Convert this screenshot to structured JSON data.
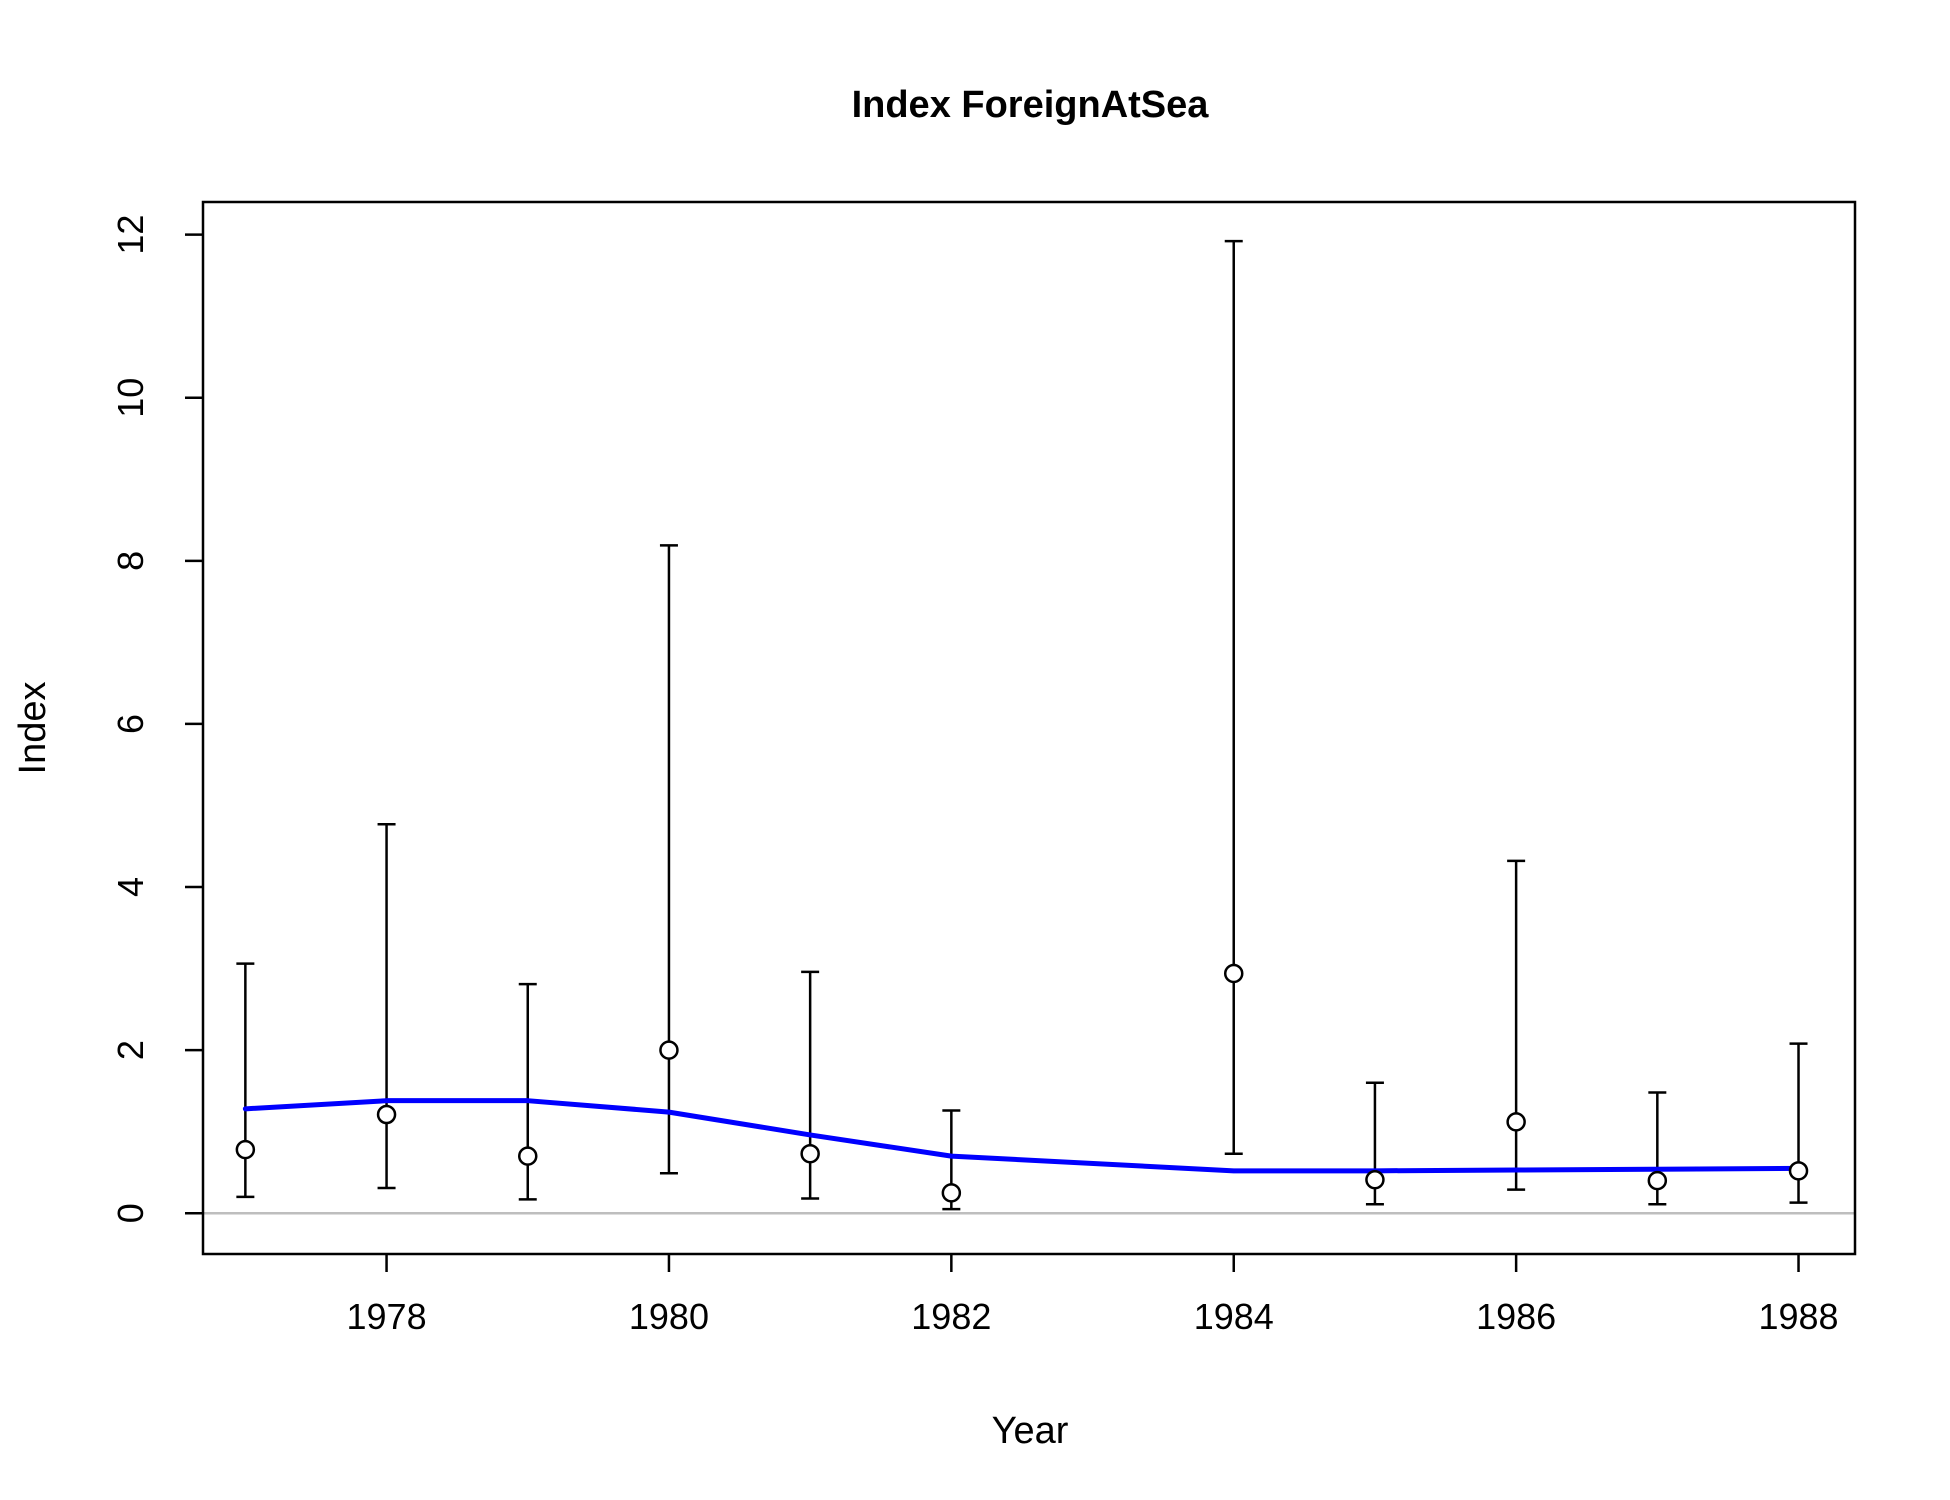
{
  "chart_data": {
    "type": "scatter",
    "title": "Index ForeignAtSea",
    "xlabel": "Year",
    "ylabel": "Index",
    "xlim": [
      1976.7,
      1988.4
    ],
    "ylim": [
      -0.5,
      12.4
    ],
    "x_ticks": [
      1978,
      1980,
      1982,
      1984,
      1986,
      1988
    ],
    "y_ticks": [
      0,
      2,
      4,
      6,
      8,
      10,
      12
    ],
    "x_tick_labels": [
      "1978",
      "1980",
      "1982",
      "1984",
      "1986",
      "1988"
    ],
    "y_tick_labels": [
      "0",
      "2",
      "4",
      "6",
      "8",
      "10",
      "12"
    ],
    "grid": false,
    "reference_line": {
      "y": 0,
      "color": "#bebebe"
    },
    "observed": {
      "x": [
        1977,
        1978,
        1979,
        1980,
        1981,
        1982,
        1984,
        1985,
        1986,
        1987,
        1988
      ],
      "y": [
        0.78,
        1.21,
        0.7,
        2.0,
        0.73,
        0.25,
        2.94,
        0.41,
        1.12,
        0.4,
        0.52
      ],
      "lower": [
        0.2,
        0.31,
        0.17,
        0.49,
        0.18,
        0.05,
        0.73,
        0.11,
        0.29,
        0.11,
        0.13
      ],
      "upper": [
        3.06,
        4.77,
        2.81,
        8.19,
        2.96,
        1.26,
        11.92,
        1.6,
        4.32,
        1.48,
        2.08
      ],
      "color": "#000000"
    },
    "expected": {
      "x": [
        1977,
        1978,
        1979,
        1980,
        1981,
        1982,
        1984,
        1985,
        1986,
        1987,
        1988
      ],
      "y": [
        1.28,
        1.38,
        1.38,
        1.24,
        0.96,
        0.7,
        0.52,
        0.52,
        0.53,
        0.54,
        0.55
      ],
      "color": "#0000ff"
    }
  }
}
